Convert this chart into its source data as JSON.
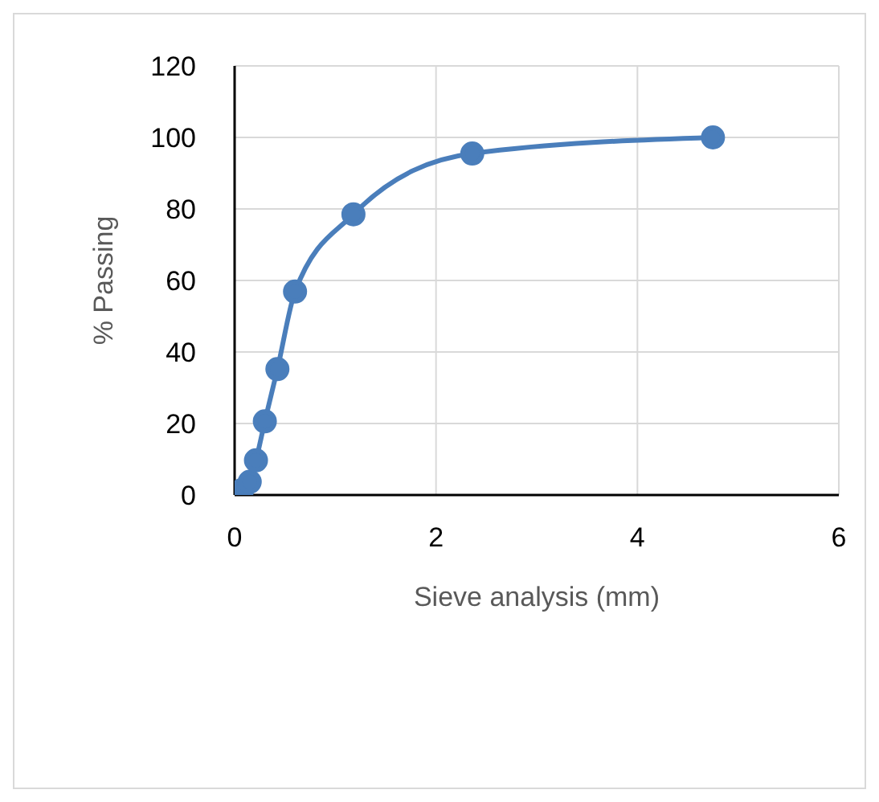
{
  "chart_data": {
    "type": "line",
    "xlabel": "Sieve analysis (mm)",
    "ylabel": "% Passing",
    "x": [
      0.075,
      0.15,
      0.212,
      0.3,
      0.425,
      0.6,
      1.18,
      2.36,
      4.75
    ],
    "series": [
      {
        "color": "#4a7ebb",
        "values": [
          1.4,
          3.7,
          9.7,
          20.6,
          35.2,
          56.9,
          78.5,
          95.5,
          100
        ]
      }
    ],
    "xlim": [
      0,
      6
    ],
    "xticks": [
      0,
      2,
      4,
      6
    ],
    "ylim": [
      0,
      120
    ],
    "yticks": [
      0,
      20,
      40,
      60,
      80,
      100,
      120
    ],
    "grid": true,
    "marker": "circle",
    "line_style": "solid",
    "legend": false
  }
}
